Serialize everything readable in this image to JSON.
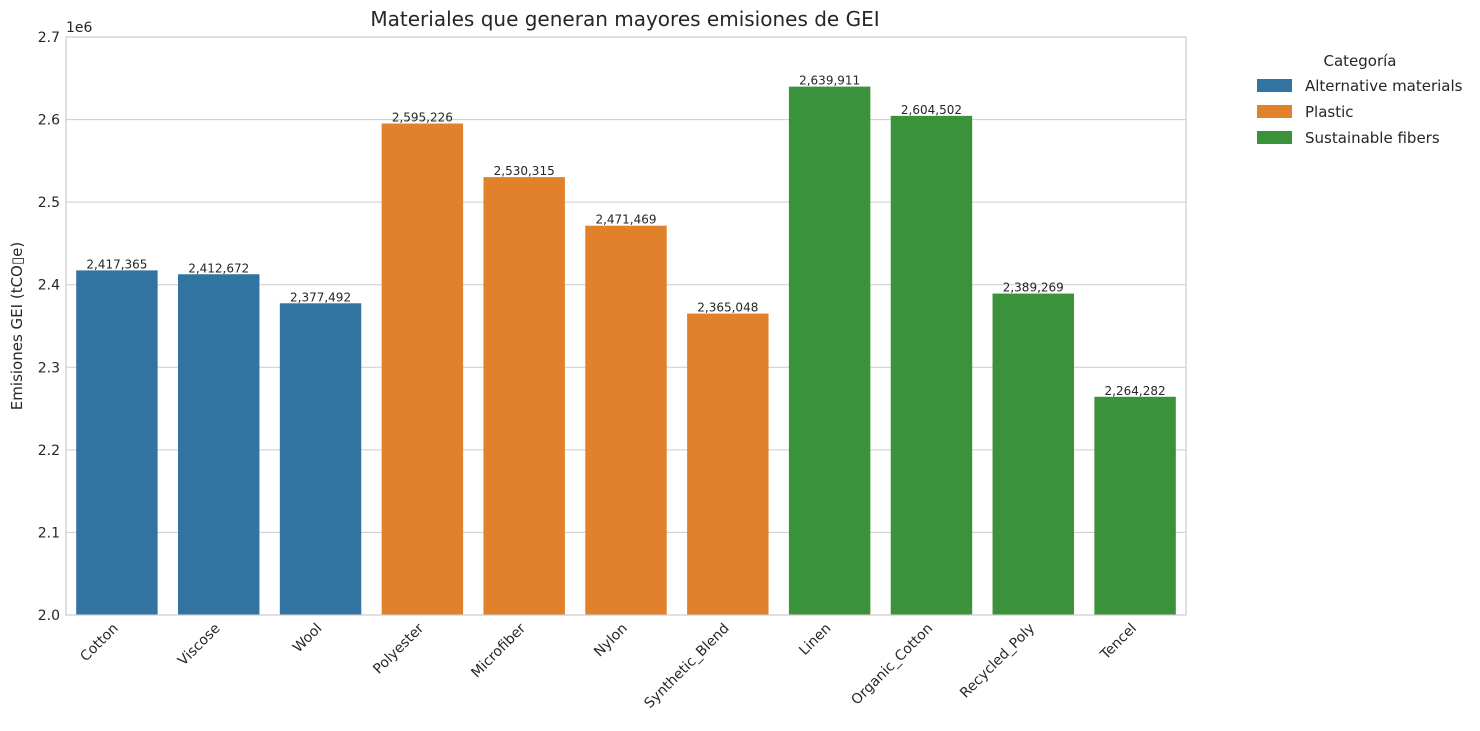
{
  "chart_data": {
    "type": "bar",
    "title": "Materiales que generan mayores emisiones de GEI",
    "xlabel": "",
    "ylabel": "Emisiones GEI (tCO▯e)",
    "offset_label": "1e6",
    "ylim": [
      2000000,
      2700000
    ],
    "y_ticks": [
      2.0,
      2.1,
      2.2,
      2.3,
      2.4,
      2.5,
      2.6,
      2.7
    ],
    "grid": true,
    "legend_position": "outside-right",
    "legend_title": "Categoría",
    "categories": [
      "Cotton",
      "Viscose",
      "Wool",
      "Polyester",
      "Microfiber",
      "Nylon",
      "Synthetic_Blend",
      "Linen",
      "Organic_Cotton",
      "Recycled_Poly",
      "Tencel"
    ],
    "values": [
      2417365,
      2412672,
      2377492,
      2595226,
      2530315,
      2471469,
      2365048,
      2639911,
      2604502,
      2389269,
      2264282
    ],
    "value_labels": [
      "2,417,365",
      "2,412,672",
      "2,377,492",
      "2,595,226",
      "2,530,315",
      "2,471,469",
      "2,365,048",
      "2,639,911",
      "2,604,502",
      "2,389,269",
      "2,264,282"
    ],
    "groups": [
      "Alternative materials",
      "Alternative materials",
      "Alternative materials",
      "Plastic",
      "Plastic",
      "Plastic",
      "Plastic",
      "Sustainable fibers",
      "Sustainable fibers",
      "Sustainable fibers",
      "Sustainable fibers"
    ],
    "series": [
      {
        "name": "Alternative materials",
        "color": "#3274a1"
      },
      {
        "name": "Plastic",
        "color": "#e1812c"
      },
      {
        "name": "Sustainable fibers",
        "color": "#3a923a"
      }
    ]
  }
}
